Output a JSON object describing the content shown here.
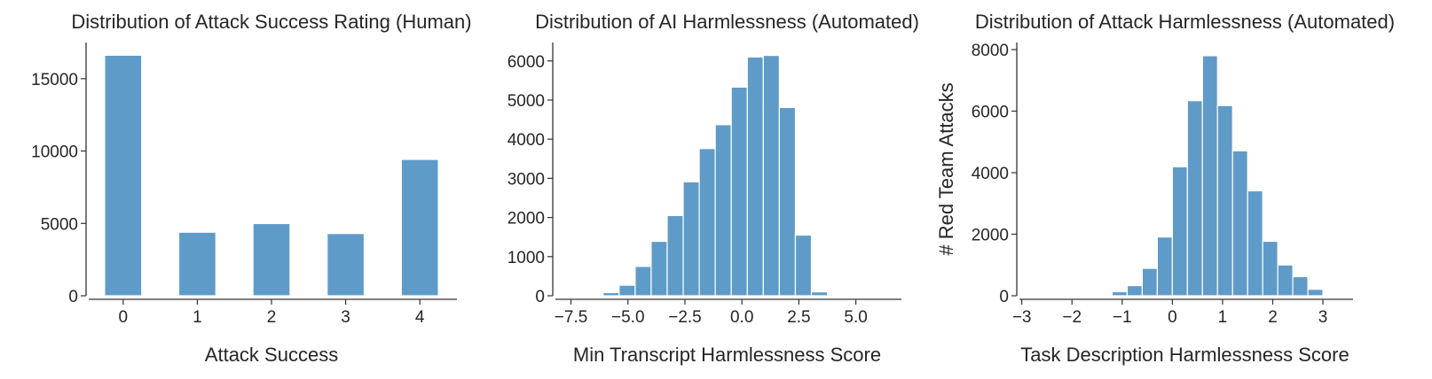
{
  "colors": {
    "bar": "#5f9bc8",
    "text": "#262626"
  },
  "chart_data": [
    {
      "type": "bar",
      "title": "Distribution of Attack Success Rating (Human)",
      "xlabel": "Attack Success",
      "ylabel": "",
      "categories": [
        0,
        1,
        2,
        3,
        4
      ],
      "values": [
        16620,
        4390,
        4990,
        4300,
        9420
      ],
      "bar_width": 0.5,
      "xlim": [
        -0.5,
        4.5
      ],
      "ylim": [
        0,
        17500
      ],
      "xticks": [
        0,
        1,
        2,
        3,
        4
      ],
      "xtick_labels": [
        "0",
        "1",
        "2",
        "3",
        "4"
      ],
      "yticks": [
        0,
        5000,
        10000,
        15000
      ],
      "ytick_labels": [
        "0",
        "5000",
        "10000",
        "15000"
      ],
      "grid": false
    },
    {
      "type": "bar",
      "subtype": "histogram",
      "title": "Distribution of AI Harmlessness (Automated)",
      "xlabel": "Min Transcript Harmlessness Score",
      "ylabel": "",
      "bin_start": -6.09,
      "bin_width": 0.703,
      "values": [
        80,
        270,
        750,
        1390,
        2050,
        2910,
        3760,
        4370,
        5330,
        6100,
        6140,
        4810,
        1550,
        100
      ],
      "xlim": [
        -8.3,
        7.0
      ],
      "ylim": [
        0,
        6470
      ],
      "xticks": [
        -7.5,
        -5.0,
        -2.5,
        0.0,
        2.5,
        5.0
      ],
      "xtick_labels": [
        "−7.5",
        "−5.0",
        "−2.5",
        "0.0",
        "2.5",
        "5.0"
      ],
      "yticks": [
        0,
        1000,
        2000,
        3000,
        4000,
        5000,
        6000
      ],
      "ytick_labels": [
        "0",
        "1000",
        "2000",
        "3000",
        "4000",
        "5000",
        "6000"
      ],
      "grid": false
    },
    {
      "type": "bar",
      "subtype": "histogram",
      "title": "Distribution of Attack Harmlessness (Automated)",
      "xlabel": "Task Description Harmlessness Score",
      "ylabel": "# Red Team Attacks",
      "bin_start": -1.5,
      "bin_width": 0.3,
      "values": [
        25,
        130,
        330,
        890,
        1910,
        4190,
        6340,
        7800,
        6180,
        4710,
        3410,
        1770,
        1000,
        620,
        210,
        30
      ],
      "xlim": [
        -3.1,
        3.6
      ],
      "ylim": [
        0,
        8230
      ],
      "xticks": [
        -3,
        -2,
        -1,
        0,
        1,
        2,
        3
      ],
      "xtick_labels": [
        "−3",
        "−2",
        "−1",
        "0",
        "1",
        "2",
        "3"
      ],
      "yticks": [
        0,
        2000,
        4000,
        6000,
        8000
      ],
      "ytick_labels": [
        "0",
        "2000",
        "4000",
        "6000",
        "8000"
      ],
      "grid": false
    }
  ]
}
